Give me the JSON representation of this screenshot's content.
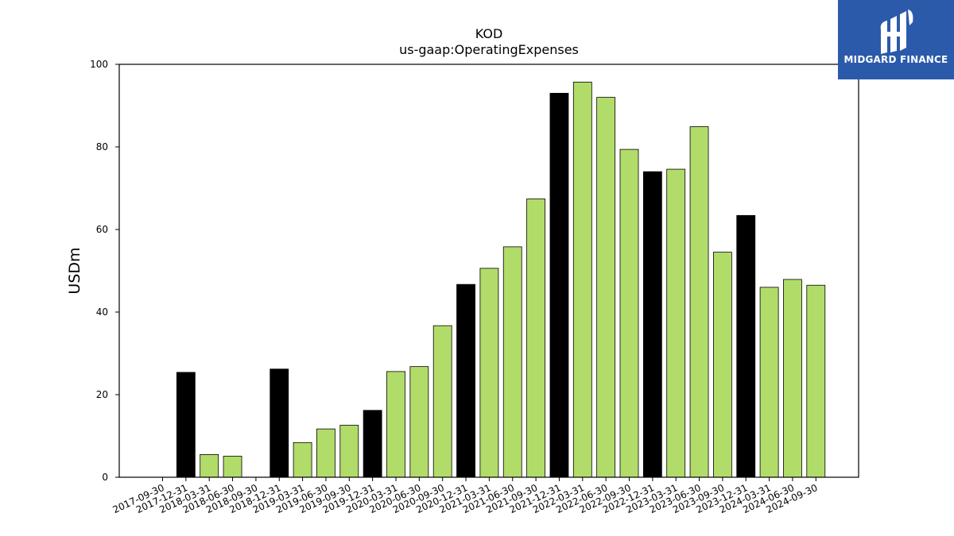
{
  "chart_data": {
    "type": "bar",
    "title": "KOD",
    "subtitle": "us-gaap:OperatingExpenses",
    "xlabel": "",
    "ylabel": "USDm",
    "ylim": [
      0,
      100
    ],
    "yticks": [
      0,
      20,
      40,
      60,
      80,
      100
    ],
    "grid": false,
    "categories": [
      "2017-09-30",
      "2017-12-31",
      "2018-03-31",
      "2018-06-30",
      "2018-09-30",
      "2018-12-31",
      "2019-03-31",
      "2019-06-30",
      "2019-09-30",
      "2019-12-31",
      "2020-03-31",
      "2020-06-30",
      "2020-09-30",
      "2020-12-31",
      "2021-03-31",
      "2021-06-30",
      "2021-09-30",
      "2021-12-31",
      "2022-03-31",
      "2022-06-30",
      "2022-09-30",
      "2022-12-31",
      "2023-03-31",
      "2023-06-30",
      "2023-09-30",
      "2023-12-31",
      "2024-03-31",
      "2024-06-30",
      "2024-09-30"
    ],
    "values": [
      0,
      25.4,
      5.5,
      5.1,
      0,
      26.2,
      8.4,
      11.7,
      12.6,
      16.2,
      25.6,
      26.8,
      36.7,
      46.7,
      50.6,
      55.8,
      67.4,
      93.0,
      95.7,
      92.0,
      79.4,
      74.0,
      74.6,
      84.9,
      54.5,
      63.4,
      46.0,
      47.9,
      46.5
    ],
    "annual": [
      false,
      true,
      false,
      false,
      false,
      true,
      false,
      false,
      false,
      true,
      false,
      false,
      false,
      true,
      false,
      false,
      false,
      true,
      false,
      false,
      false,
      true,
      false,
      false,
      false,
      true,
      false,
      false,
      false
    ],
    "colors": {
      "quarter": "#b2dc69",
      "annual": "#000000",
      "edge": "#000000"
    }
  },
  "logo": {
    "text": "MIDGARD FINANCE",
    "background": "#2b5aab"
  }
}
